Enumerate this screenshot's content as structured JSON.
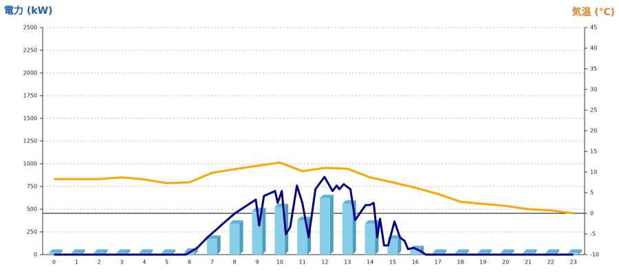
{
  "chart_data": {
    "type": "bar-line",
    "ylabel": "電力 (kW)",
    "y2label": "気温 (℃)",
    "categories": [
      "0",
      "1",
      "2",
      "3",
      "4",
      "5",
      "6",
      "7",
      "8",
      "9",
      "10",
      "11",
      "12",
      "13",
      "14",
      "15",
      "16",
      "17",
      "18",
      "19",
      "20",
      "21",
      "22",
      "23"
    ],
    "ylim": [
      0,
      2500
    ],
    "yticks": [
      0,
      250,
      500,
      750,
      1000,
      1250,
      1500,
      1750,
      2000,
      2250,
      2500
    ],
    "y2lim": [
      -10,
      45
    ],
    "y2ticks": [
      -10,
      -5,
      0,
      5,
      10,
      15,
      20,
      25,
      30,
      35,
      40,
      45
    ],
    "grid": true,
    "series": [
      {
        "type": "bar",
        "color": "#87ceeb",
        "values": [
          20,
          20,
          20,
          20,
          20,
          20,
          30,
          174,
          340,
          477,
          523,
          379,
          621,
          560,
          340,
          174,
          60,
          20,
          20,
          20,
          20,
          20,
          20,
          20
        ]
      },
      {
        "type": "line",
        "color": "#00008b",
        "x": [
          0,
          5.84,
          6.35,
          6.8,
          7.26,
          7.48,
          8.02,
          8.48,
          8.94,
          9.09,
          9.3,
          9.79,
          9.91,
          10.09,
          10.27,
          10.46,
          10.76,
          11.0,
          11.28,
          11.58,
          11.98,
          12.34,
          12.52,
          12.64,
          12.83,
          13.13,
          13.34,
          13.8,
          13.98,
          14.16,
          14.32,
          14.44,
          14.62,
          14.8,
          15.08,
          15.32,
          15.53,
          15.68,
          15.93,
          16.23,
          16.47,
          23
        ],
        "values": [
          0,
          0,
          75,
          190,
          290,
          340,
          455,
          530,
          605,
          320,
          645,
          700,
          570,
          700,
          225,
          300,
          760,
          570,
          190,
          720,
          855,
          700,
          760,
          720,
          775,
          720,
          380,
          545,
          545,
          570,
          190,
          395,
          100,
          100,
          365,
          190,
          150,
          60,
          75,
          40,
          0,
          0
        ]
      },
      {
        "type": "line",
        "axis": "y2",
        "color": "#ffa500",
        "values": [
          8.3,
          8.3,
          8.3,
          8.7,
          8.2,
          7.3,
          7.5,
          9.8,
          10.7,
          11.5,
          12.3,
          10.2,
          11,
          10.8,
          8.7,
          7.5,
          6.2,
          4.7,
          2.8,
          2.3,
          1.8,
          1,
          0.7,
          0
        ]
      }
    ]
  }
}
